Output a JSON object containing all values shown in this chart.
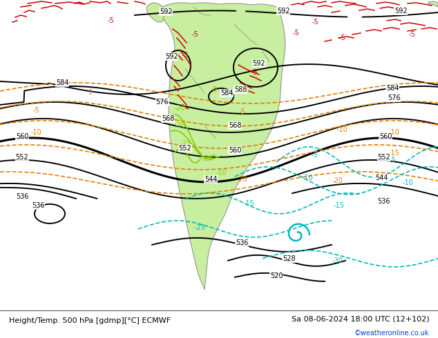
{
  "title_left": "Height/Temp. 500 hPa [gdmp][°C] ECMWF",
  "title_right": "Sa 08-06-2024 18:00 UTC (12+102)",
  "copyright": "©weatheronline.co.uk",
  "bg_color": "#e8e8e8",
  "land_color": "#c8eea0",
  "border_color": "#888888",
  "fig_width": 6.34,
  "fig_height": 4.9,
  "dpi": 100
}
